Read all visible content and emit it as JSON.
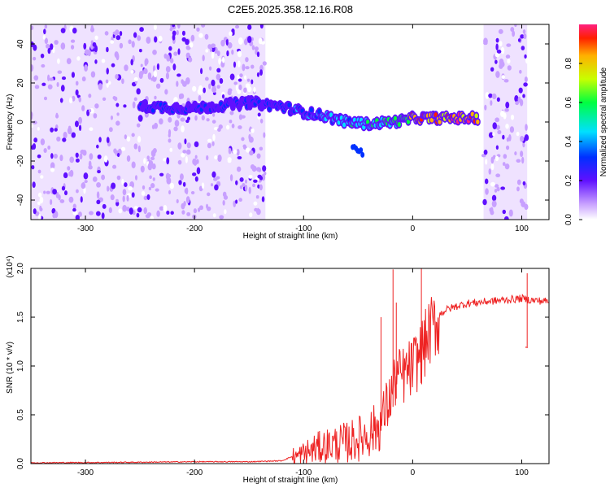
{
  "title": "C2E5.2025.358.12.16.R08",
  "chart_data": [
    {
      "type": "heatmap",
      "title": "C2E5.2025.358.12.16.R08",
      "xlabel": "Height of straight line (km)",
      "ylabel": "Frequency (Hz)",
      "xlim": [
        -350,
        125
      ],
      "ylim": [
        -50,
        50
      ],
      "xticks": [
        -300,
        -200,
        -100,
        0,
        100
      ],
      "xtick_labels": [
        "-300",
        "-200",
        "-100",
        "0",
        "100"
      ],
      "yticks": [
        -40,
        -20,
        0,
        20,
        40
      ],
      "ytick_labels": [
        "-40",
        "-20",
        "0",
        "20",
        "40"
      ],
      "colorbar": {
        "label": "Normalized spectral amplitude",
        "range": [
          0,
          1
        ],
        "ticks": [
          0.0,
          0.2,
          0.4,
          0.6,
          0.8
        ],
        "tick_labels": [
          "0.0",
          "0.2",
          "0.4",
          "0.6",
          "0.8"
        ],
        "colormap": "rainbow"
      },
      "noise_regions": [
        [
          -350,
          -135
        ],
        [
          65,
          105
        ]
      ],
      "signal_track": {
        "x": [
          -250,
          -200,
          -150,
          -120,
          -100,
          -80,
          -60,
          -40,
          -20,
          -5,
          0,
          20,
          40,
          60
        ],
        "freq_hz": [
          8,
          7,
          10,
          8,
          5,
          3,
          0,
          -1,
          0,
          1,
          2,
          2,
          2,
          2
        ],
        "amplitude": [
          0.35,
          0.35,
          0.35,
          0.4,
          0.45,
          0.5,
          0.55,
          0.6,
          0.65,
          0.75,
          0.9,
          0.95,
          0.95,
          0.95
        ]
      },
      "side_branch": {
        "x": [
          -55,
          -45
        ],
        "freq_hz": [
          -12,
          -17
        ]
      }
    },
    {
      "type": "line",
      "xlabel": "Height of straight line (km)",
      "ylabel": "SNR (10 * v/v)",
      "y_scale_label": "(x10⁴)",
      "xlim": [
        -350,
        125
      ],
      "ylim": [
        0,
        2.0
      ],
      "xticks": [
        -300,
        -200,
        -100,
        0,
        100
      ],
      "xtick_labels": [
        "-300",
        "-200",
        "-100",
        "0",
        "100"
      ],
      "yticks": [
        0.0,
        0.5,
        1.0,
        1.5,
        2.0
      ],
      "ytick_labels": [
        "0.0",
        "0.5",
        "1.0",
        "1.5",
        "2.0"
      ],
      "color": "#ee2222",
      "series": [
        {
          "name": "SNR",
          "x": [
            -350,
            -300,
            -250,
            -200,
            -150,
            -120,
            -100,
            -90,
            -80,
            -60,
            -50,
            -40,
            -30,
            -25,
            -20,
            -15,
            -10,
            -5,
            0,
            5,
            10,
            15,
            20,
            30,
            40,
            50,
            60,
            80,
            100,
            110,
            125
          ],
          "y": [
            0.01,
            0.012,
            0.015,
            0.02,
            0.02,
            0.03,
            0.12,
            0.18,
            0.22,
            0.26,
            0.3,
            0.36,
            0.45,
            0.6,
            0.75,
            0.95,
            0.95,
            1.0,
            1.05,
            1.15,
            1.25,
            1.4,
            1.5,
            1.58,
            1.62,
            1.65,
            1.66,
            1.68,
            1.7,
            1.68,
            1.67
          ]
        }
      ],
      "spikes": [
        {
          "x": -29,
          "y": 1.5
        },
        {
          "x": -18,
          "y": 1.99
        },
        {
          "x": -15,
          "y": 1.65
        },
        {
          "x": 8,
          "y": 2.0
        },
        {
          "x": 104,
          "y": 1.2
        },
        {
          "x": 105,
          "y": 1.95
        }
      ]
    }
  ]
}
